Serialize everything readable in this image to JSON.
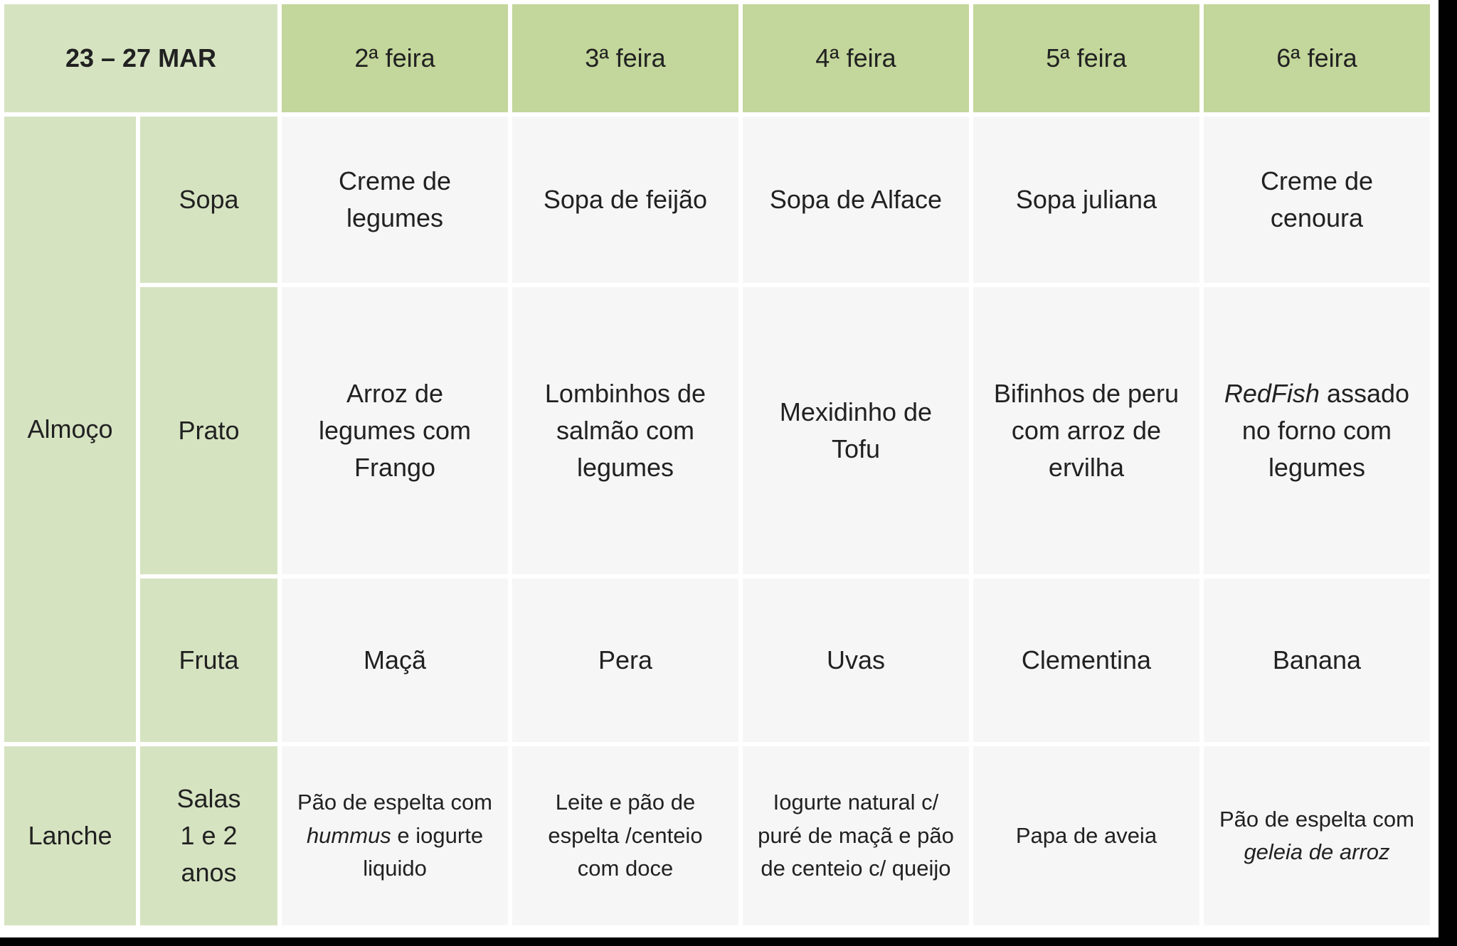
{
  "header": {
    "week_label": "23 – 27 MAR",
    "days": [
      "2ª feira",
      "3ª feira",
      "4ª feira",
      "5ª feira",
      "6ª feira"
    ]
  },
  "sections": {
    "lunch_label": "Almoço",
    "snack_label": "Lanche"
  },
  "rows": [
    {
      "category": "Sopa",
      "cells": [
        [
          {
            "t": "Creme de\nlegumes"
          }
        ],
        [
          {
            "t": "Sopa de feijão"
          }
        ],
        [
          {
            "t": "Sopa de Alface"
          }
        ],
        [
          {
            "t": "Sopa juliana"
          }
        ],
        [
          {
            "t": "Creme de\ncenoura"
          }
        ]
      ]
    },
    {
      "category": "Prato",
      "cells": [
        [
          {
            "t": "Arroz de\nlegumes com\nFrango"
          }
        ],
        [
          {
            "t": "Lombinhos de\nsalmão com\nlegumes"
          }
        ],
        [
          {
            "t": "Mexidinho de\nTofu"
          }
        ],
        [
          {
            "t": "Bifinhos de peru\ncom arroz de\nervilha"
          }
        ],
        [
          {
            "t": "RedFish",
            "i": true
          },
          {
            "t": " assado\nno forno com\nlegumes"
          }
        ]
      ]
    },
    {
      "category": "Fruta",
      "cells": [
        [
          {
            "t": "Maçã"
          }
        ],
        [
          {
            "t": "Pera"
          }
        ],
        [
          {
            "t": "Uvas"
          }
        ],
        [
          {
            "t": "Clementina"
          }
        ],
        [
          {
            "t": "Banana"
          }
        ]
      ]
    },
    {
      "category": "Salas\n1 e 2\nanos",
      "cells": [
        [
          {
            "t": "Pão de espelta com\n"
          },
          {
            "t": "hummus",
            "i": true
          },
          {
            "t": " e iogurte\nliquido"
          }
        ],
        [
          {
            "t": "Leite e pão de\nespelta /centeio\ncom doce"
          }
        ],
        [
          {
            "t": "Iogurte natural c/\npuré de maçã e pão\nde centeio c/ queijo"
          }
        ],
        [
          {
            "t": "Papa de aveia"
          }
        ],
        [
          {
            "t": "Pão de espelta com\n"
          },
          {
            "t": "geleia de arroz",
            "i": true
          }
        ]
      ]
    }
  ],
  "colors": {
    "header_light_green": "#d6e3c1",
    "header_mid_green": "#c3d69b",
    "body_gray": "#f6f6f6",
    "gridline_white": "#ffffff",
    "bar_black": "#010101",
    "text": "#212121"
  }
}
